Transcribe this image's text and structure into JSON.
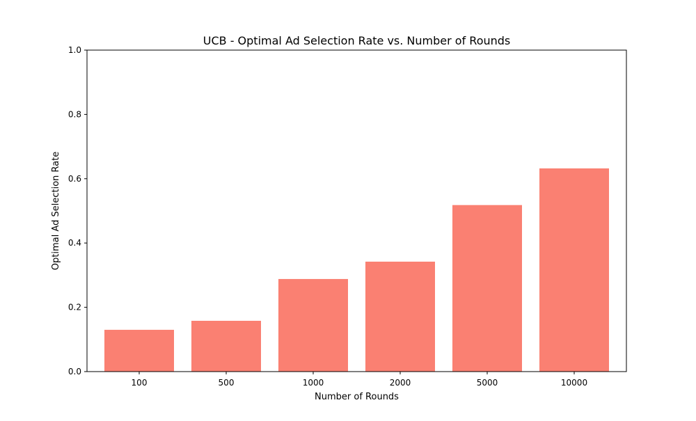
{
  "chart_data": {
    "type": "bar",
    "title": "UCB - Optimal Ad Selection Rate vs. Number of Rounds",
    "xlabel": "Number of Rounds",
    "ylabel": "Optimal Ad Selection Rate",
    "categories": [
      "100",
      "500",
      "1000",
      "2000",
      "5000",
      "10000"
    ],
    "values": [
      0.13,
      0.158,
      0.288,
      0.342,
      0.518,
      0.632
    ],
    "ylim": [
      0,
      1.0
    ],
    "yticks": [
      "0.0",
      "0.2",
      "0.4",
      "0.6",
      "0.8",
      "1.0"
    ],
    "ytick_values": [
      0,
      0.2,
      0.4,
      0.6,
      0.8,
      1.0
    ],
    "grid": false,
    "bar_color": "#fa8072"
  }
}
